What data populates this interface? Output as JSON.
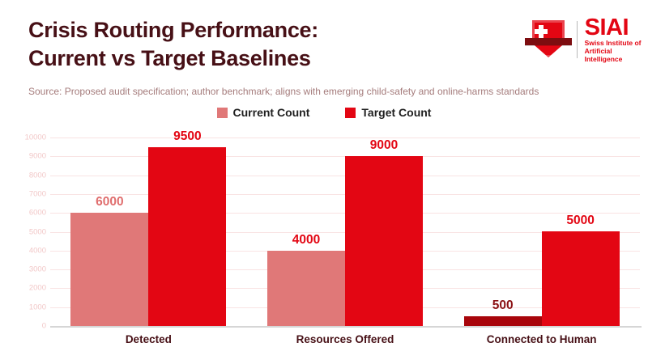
{
  "header": {
    "title_line1": "Crisis Routing Performance:",
    "title_line2": "Current vs Target Baselines"
  },
  "source_note": "Source: Proposed audit specification; author benchmark; aligns with emerging child-safety and online-harms standards",
  "logo": {
    "acronym": "SIAI",
    "subtitle_line1": "Swiss Institute of",
    "subtitle_line2": "Artificial Intelligence"
  },
  "legend": [
    {
      "label": "Current Count",
      "color": "#e07878"
    },
    {
      "label": "Target Count",
      "color": "#e30613"
    }
  ],
  "colors": {
    "brand_red": "#e30613",
    "current_pink": "#e07878",
    "dark_red": "#a8050b",
    "title_maroon": "#471016",
    "source_gray": "#a57c7c",
    "legend_text": "#1f1f1f",
    "grid_pink": "#f9e3e3",
    "tick_pink": "#f2c8c8",
    "axis_gray": "#d6d6d6"
  },
  "chart_data": {
    "type": "bar",
    "title": "Crisis Routing Performance: Current vs Target Baselines",
    "categories": [
      "Detected",
      "Resources Offered",
      "Connected to Human"
    ],
    "series": [
      {
        "name": "Current Count",
        "values": [
          6000,
          4000,
          500
        ],
        "bar_colors": [
          "#e07878",
          "#e07878",
          "#a8050b"
        ],
        "label_colors": [
          "#e06e6e",
          "#e30613",
          "#8b1114"
        ]
      },
      {
        "name": "Target Count",
        "values": [
          9500,
          9000,
          5000
        ],
        "bar_colors": [
          "#e30613",
          "#e30613",
          "#e30613"
        ],
        "label_colors": [
          "#e30613",
          "#e30613",
          "#e30613"
        ]
      }
    ],
    "xlabel": "",
    "ylabel": "",
    "ylim": [
      0,
      10000
    ],
    "ytick_step": 1000,
    "ytick_labels": [
      "0",
      "1000",
      "2000",
      "3000",
      "4000",
      "5000",
      "6000",
      "7000",
      "8000",
      "9000",
      "10000"
    ],
    "grid": true,
    "legend_position": "top-center",
    "value_labels_shown": true
  }
}
